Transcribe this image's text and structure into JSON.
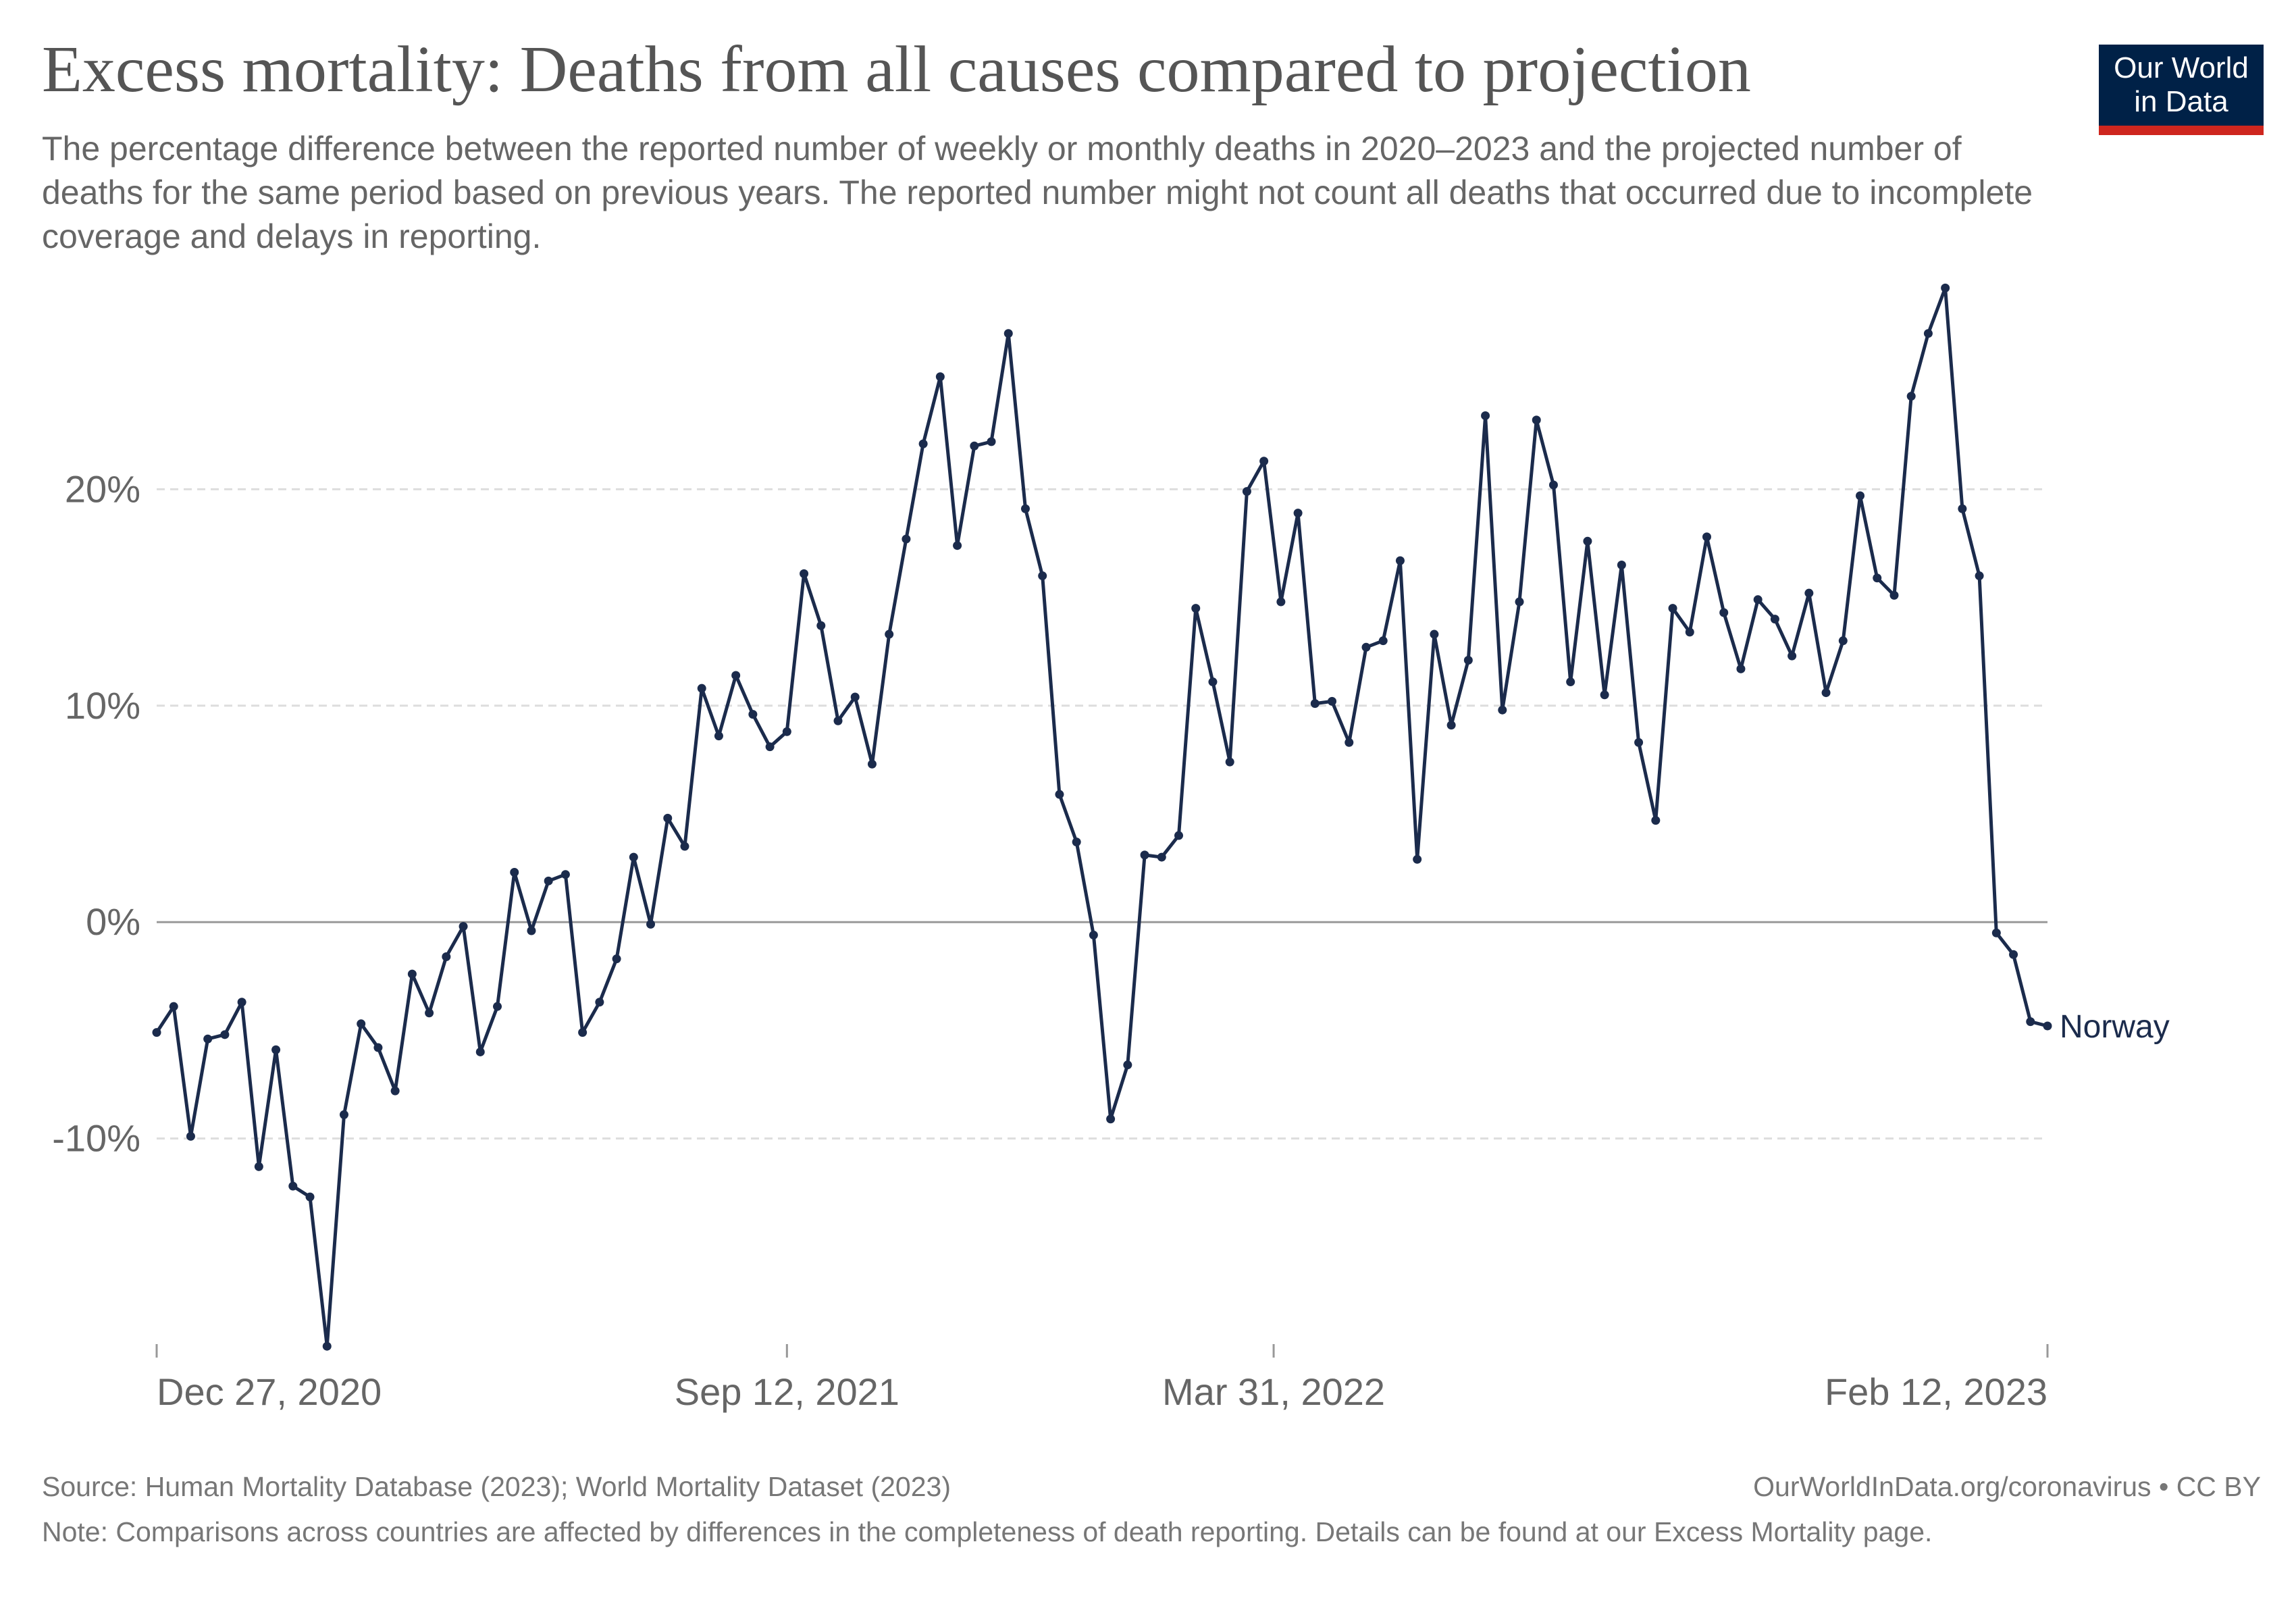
{
  "header": {
    "title": "Excess mortality: Deaths from all causes compared to projection",
    "subtitle": "The percentage difference between the reported number of weekly or monthly deaths in 2020–2023 and the projected number of deaths for the same period based on previous years. The reported number might not count all deaths that occurred due to incomplete coverage and delays in reporting."
  },
  "logo": {
    "line1": "Our World",
    "line2": "in Data",
    "bg_color": "#002147",
    "accent_color": "#ce261e"
  },
  "footer": {
    "source": "Source: Human Mortality Database (2023); World Mortality Dataset (2023)",
    "url": "OurWorldInData.org/coronavirus • CC BY",
    "note": "Note: Comparisons across countries are affected by differences in the completeness of death reporting. Details can be found at our Excess Mortality page."
  },
  "chart_data": {
    "type": "line",
    "title": "Excess mortality: Deaths from all causes compared to projection",
    "xlabel": "",
    "ylabel": "",
    "ylim": [
      -19.5,
      29.5
    ],
    "y_ticks": [
      -10,
      0,
      10,
      20
    ],
    "y_tick_labels": [
      "-10%",
      "0%",
      "10%",
      "20%"
    ],
    "x_start": "2020-12-27",
    "x_end": "2023-02-12",
    "x_ticks": [
      "2020-12-27",
      "2021-09-12",
      "2022-03-31",
      "2023-02-12"
    ],
    "x_tick_labels": [
      "Dec 27, 2020",
      "Sep 12, 2021",
      "Mar 31, 2022",
      "Feb 12, 2023"
    ],
    "grid": true,
    "line_color": "#1b2b4c",
    "series": [
      {
        "name": "Norway",
        "values": [
          -5.1,
          -3.9,
          -9.9,
          -5.4,
          -5.2,
          -3.7,
          -11.3,
          -5.9,
          -12.2,
          -12.7,
          -19.6,
          -8.9,
          -4.7,
          -5.8,
          -7.8,
          -2.4,
          -4.2,
          -1.6,
          -0.2,
          -6.0,
          -3.9,
          2.3,
          -0.4,
          1.9,
          2.2,
          -5.1,
          -3.7,
          -1.7,
          3.0,
          -0.1,
          4.8,
          3.5,
          10.8,
          8.6,
          11.4,
          9.6,
          8.1,
          8.8,
          16.1,
          13.7,
          9.3,
          10.4,
          7.3,
          13.3,
          17.7,
          22.1,
          25.2,
          17.4,
          22.0,
          22.2,
          27.2,
          19.1,
          16.0,
          5.9,
          3.7,
          -0.6,
          -9.1,
          -6.6,
          3.1,
          3.0,
          4.0,
          14.5,
          11.1,
          7.4,
          19.9,
          21.3,
          14.8,
          18.9,
          10.1,
          10.2,
          8.3,
          12.7,
          13.0,
          16.7,
          2.9,
          13.3,
          9.1,
          12.1,
          23.4,
          9.8,
          14.8,
          23.2,
          20.2,
          11.1,
          17.6,
          10.5,
          16.5,
          8.3,
          4.7,
          14.5,
          13.4,
          17.8,
          14.3,
          11.7,
          14.9,
          14.0,
          12.3,
          15.2,
          10.6,
          13.0,
          19.7,
          15.9,
          15.1,
          24.3,
          27.2,
          29.3,
          19.1,
          16.0,
          -0.5,
          -1.5,
          -4.6,
          -4.8
        ]
      }
    ]
  }
}
